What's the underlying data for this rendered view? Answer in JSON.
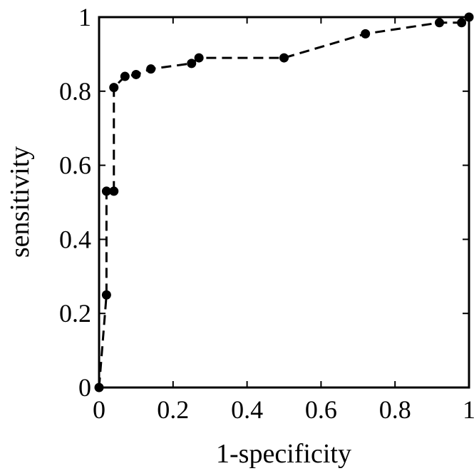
{
  "chart_data": {
    "type": "line",
    "title": "",
    "xlabel": "1-specificity",
    "ylabel": "sensitivity",
    "xlim": [
      0,
      1
    ],
    "ylim": [
      0,
      1
    ],
    "x_ticks": [
      "0",
      "0.2",
      "0.4",
      "0.6",
      "0.8",
      "1"
    ],
    "y_ticks": [
      "0",
      "0.2",
      "0.4",
      "0.6",
      "0.8",
      "1"
    ],
    "x_tick_values": [
      0,
      0.2,
      0.4,
      0.6,
      0.8,
      1
    ],
    "y_tick_values": [
      0,
      0.2,
      0.4,
      0.6,
      0.8,
      1
    ],
    "grid": false,
    "legend": "none",
    "line_style": "dashed",
    "marker": "filled-circle",
    "color": "#000000",
    "series": [
      {
        "x": [
          0,
          0.02,
          0.02,
          0.04,
          0.04,
          0.07,
          0.1,
          0.14,
          0.25,
          0.27,
          0.5,
          0.72,
          0.92,
          0.98,
          1.0
        ],
        "y": [
          0,
          0.25,
          0.53,
          0.53,
          0.81,
          0.84,
          0.845,
          0.86,
          0.875,
          0.89,
          0.89,
          0.955,
          0.985,
          0.985,
          1.0
        ]
      }
    ]
  }
}
